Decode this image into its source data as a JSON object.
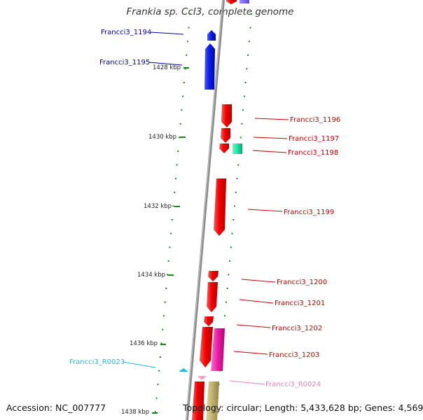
{
  "title": "Frankia sp. CcI3, complete genome",
  "accession": "Accession: NC_007777",
  "topology": "Topology: circular; Length: 5,433,628 bp; Genes: 4,569",
  "scale_labels": [
    "1428 kbp",
    "1430 kbp",
    "1432 kbp",
    "1434 kbp",
    "1436 kbp",
    "1438 kbp"
  ],
  "colors": {
    "backbone": "#8c8c8c",
    "tick": "#138a13",
    "blue": "#0a1ee6",
    "red": "#f20000",
    "green": "#19e6a0",
    "magenta": "#ee1aa6",
    "tan": "#bfb06a",
    "cyan": "#2ab7e0",
    "pink": "#f5a0c8"
  },
  "gene_labels": [
    {
      "text": "Francci3_1194",
      "color": "#0000aa"
    },
    {
      "text": "Francci3_1195",
      "color": "#0000aa"
    },
    {
      "text": "Francci3_1196",
      "color": "#cc0000"
    },
    {
      "text": "Francci3_1197",
      "color": "#cc0000"
    },
    {
      "text": "Francci3_1198",
      "color": "#cc0000"
    },
    {
      "text": "Francci3_1199",
      "color": "#cc0000"
    },
    {
      "text": "Francci3_1200",
      "color": "#cc0000"
    },
    {
      "text": "Francci3_1201",
      "color": "#cc0000"
    },
    {
      "text": "Francci3_1202",
      "color": "#cc0000"
    },
    {
      "text": "Francci3_1203",
      "color": "#cc0000"
    },
    {
      "text": "Francci3_R0023",
      "color": "#2ab7e0"
    },
    {
      "text": "Francci3_R0024",
      "color": "#f080b8"
    }
  ]
}
